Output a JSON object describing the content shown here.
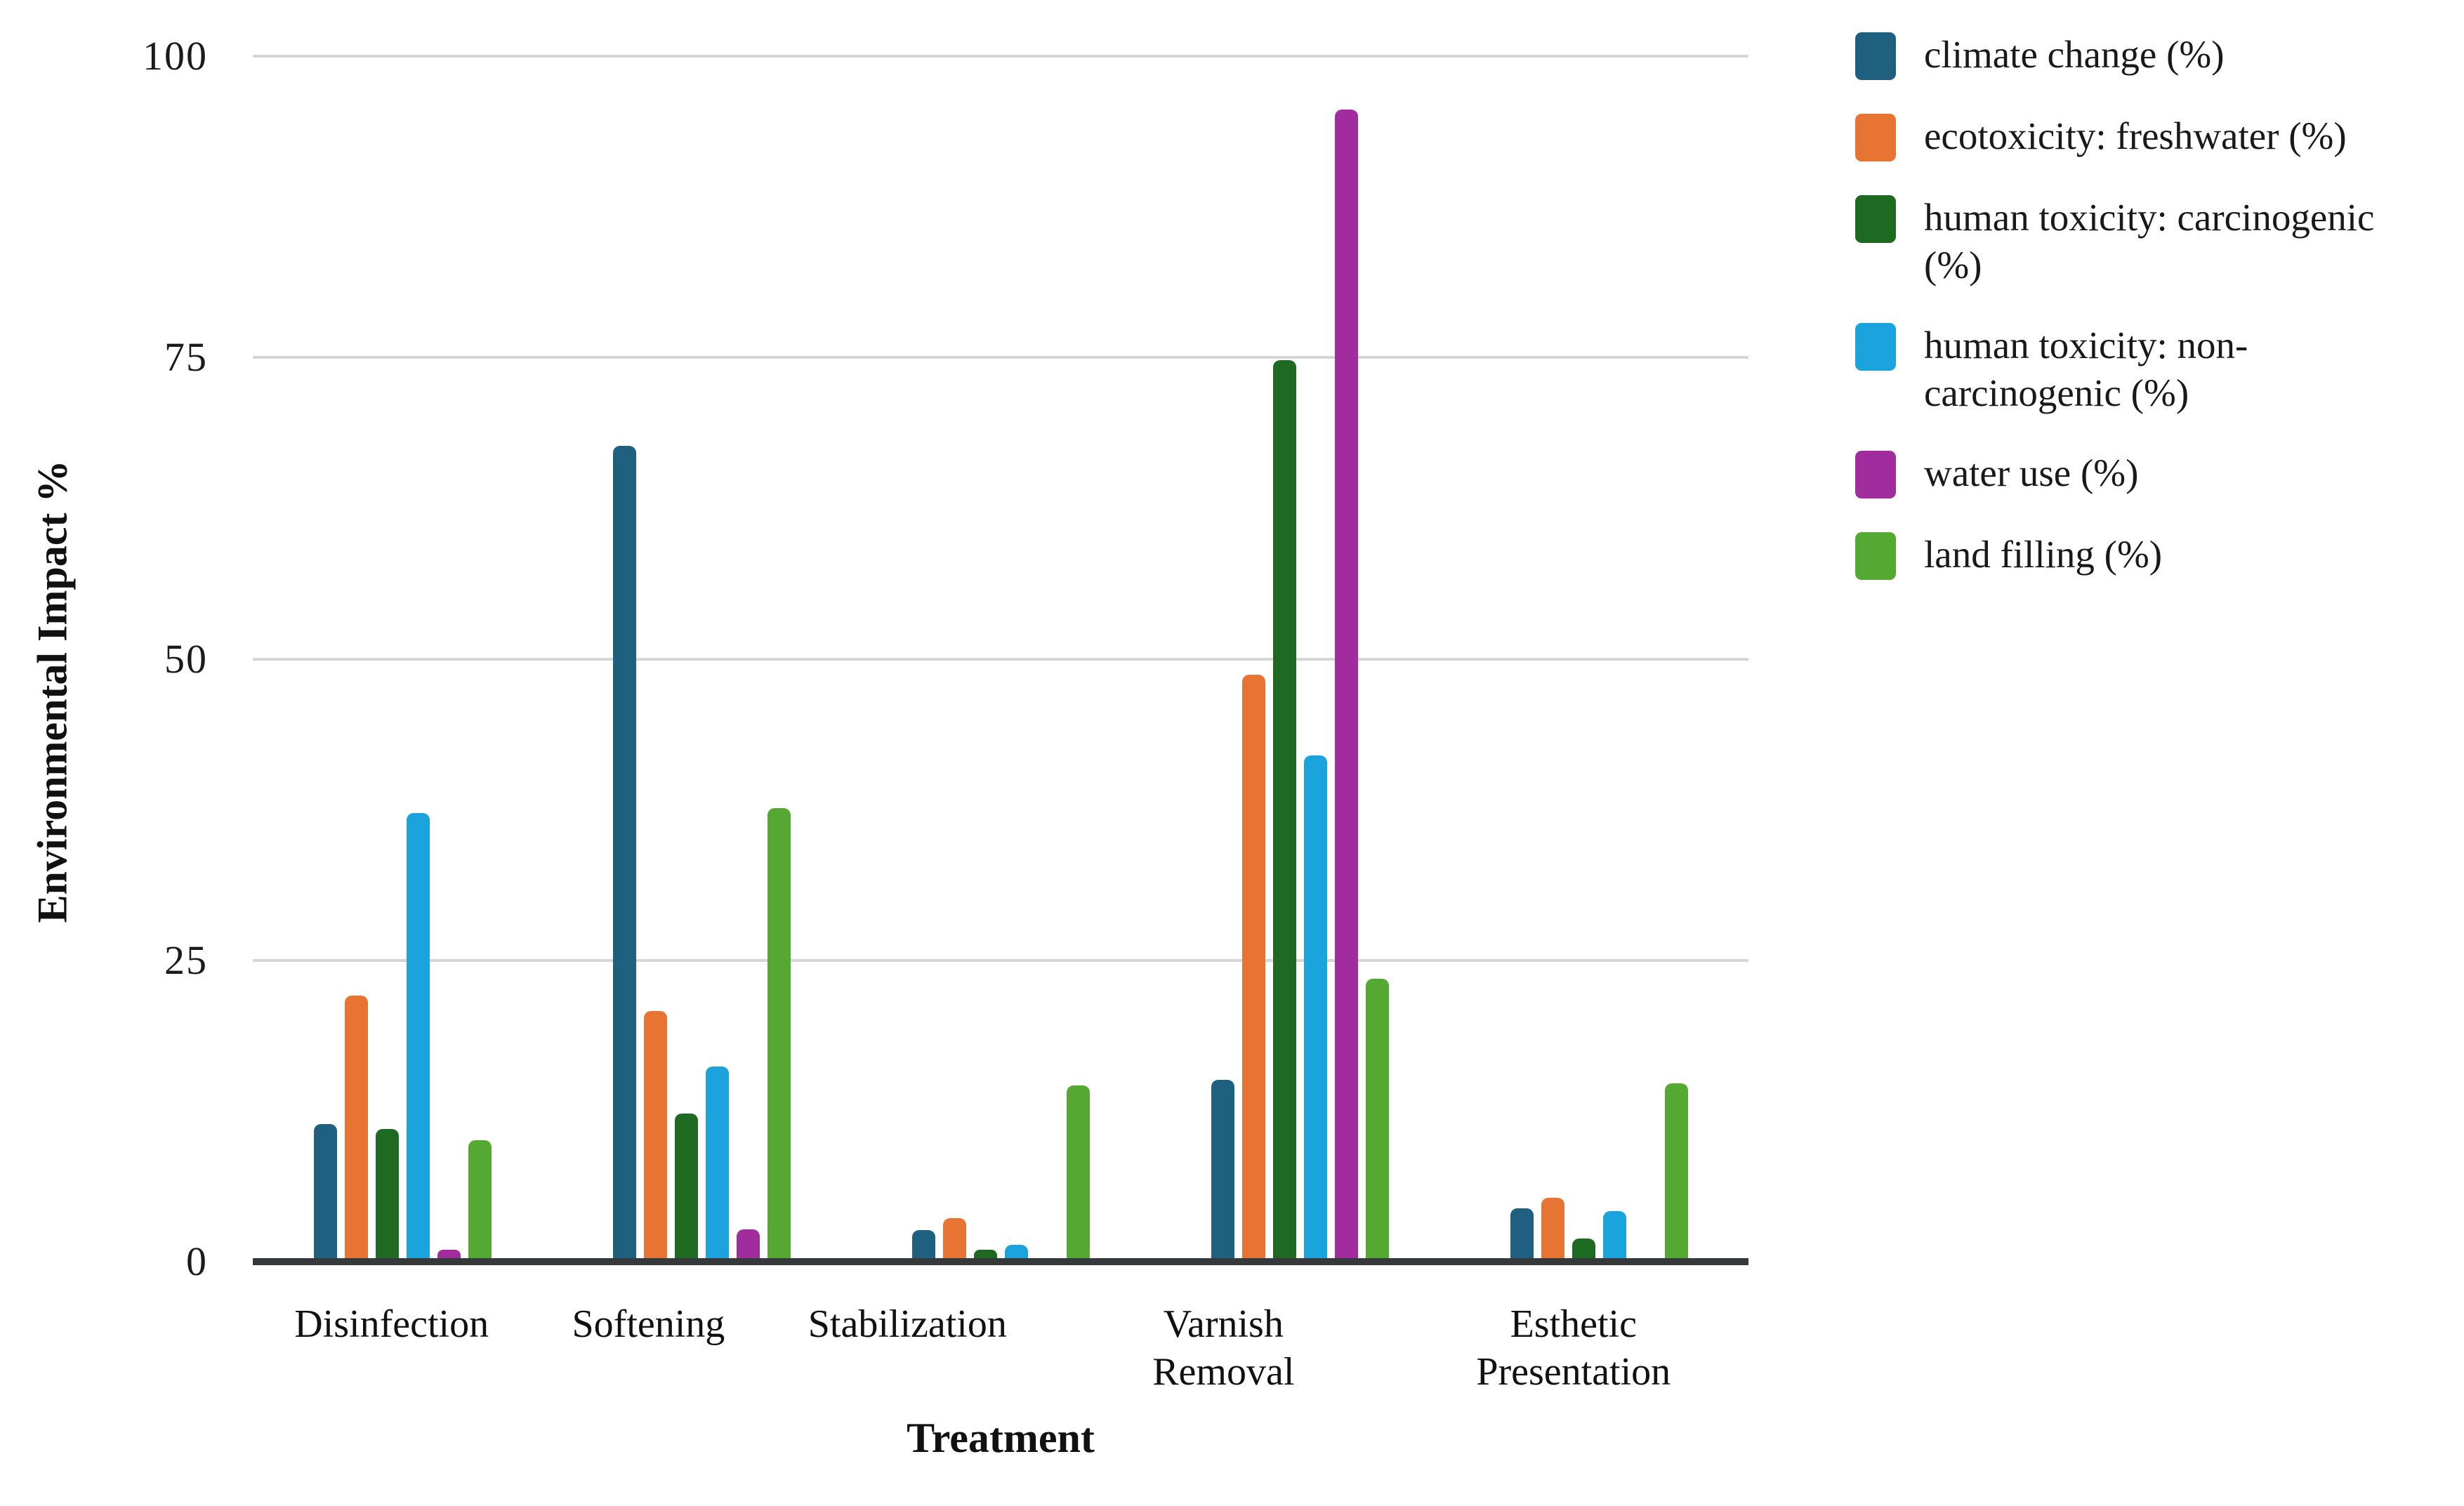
{
  "chart_data": {
    "type": "bar",
    "title": "",
    "xlabel": "Treatment",
    "ylabel": "Environmental Impact %",
    "ylim": [
      0,
      100
    ],
    "yticks": [
      0,
      25,
      50,
      75,
      100
    ],
    "grid": "horizontal-only",
    "legend_position": "right-outside",
    "axis_color": "#36393b",
    "gridline_color": "#d6d6d6",
    "categories": [
      "Disinfection",
      "Softening",
      "Stabilization",
      "Varnish Removal",
      "Esthetic Presentation"
    ],
    "series": [
      {
        "name": "climate change (%)",
        "color": "#1f5f80",
        "values": [
          11.4,
          67.7,
          2.6,
          15.1,
          4.4
        ]
      },
      {
        "name": "ecotoxicity: freshwater (%)",
        "color": "#e87434",
        "values": [
          22.1,
          20.8,
          3.6,
          48.7,
          5.3
        ]
      },
      {
        "name": "human toxicity: carcinogenic (%)",
        "color": "#1e6a22",
        "values": [
          11.0,
          12.3,
          1.0,
          74.8,
          1.9
        ]
      },
      {
        "name": "human toxicity: non-carcinogenic (%)",
        "color": "#1aa3dc",
        "values": [
          37.2,
          16.2,
          1.4,
          42.0,
          4.2
        ]
      },
      {
        "name": "water use (%)",
        "color": "#a02c9d",
        "values": [
          1.0,
          2.7,
          0,
          95.6,
          0
        ]
      },
      {
        "name": "land filling (%)",
        "color": "#55a932",
        "values": [
          10.1,
          37.6,
          14.6,
          23.5,
          14.8
        ]
      }
    ]
  }
}
